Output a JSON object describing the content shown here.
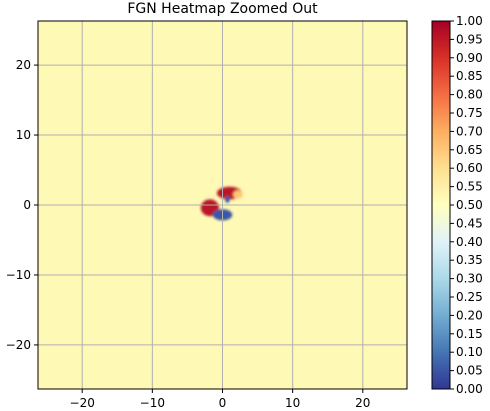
{
  "chart_data": {
    "type": "heatmap",
    "title": "FGN Heatmap Zoomed Out",
    "xlabel": "",
    "ylabel": "",
    "xlim": [
      -26.3,
      26.3
    ],
    "ylim": [
      -26.3,
      26.3
    ],
    "x_ticks": [
      -20,
      -10,
      0,
      10,
      20
    ],
    "y_ticks": [
      -20,
      -10,
      0,
      10,
      20
    ],
    "grid": true,
    "background_value": 0.52,
    "colormap": "RdYlBu_r",
    "colorbar": {
      "min": 0.0,
      "max": 1.0,
      "ticks": [
        "0.00",
        "0.05",
        "0.10",
        "0.15",
        "0.20",
        "0.25",
        "0.30",
        "0.35",
        "0.40",
        "0.45",
        "0.50",
        "0.55",
        "0.60",
        "0.65",
        "0.70",
        "0.75",
        "0.80",
        "0.85",
        "0.90",
        "0.95",
        "1.00"
      ]
    },
    "blobs": [
      {
        "x": 1.0,
        "y": 1.7,
        "rx": 1.8,
        "ry": 0.9,
        "value": 0.96
      },
      {
        "x": -1.8,
        "y": -0.4,
        "rx": 1.3,
        "ry": 1.2,
        "value": 0.96
      },
      {
        "x": 0.0,
        "y": -1.4,
        "rx": 1.4,
        "ry": 0.8,
        "value": 0.05
      },
      {
        "x": 0.7,
        "y": 0.8,
        "rx": 0.35,
        "ry": 0.5,
        "value": 0.05
      },
      {
        "x": 2.2,
        "y": 1.5,
        "rx": 0.7,
        "ry": 0.6,
        "value": 0.65
      }
    ]
  }
}
